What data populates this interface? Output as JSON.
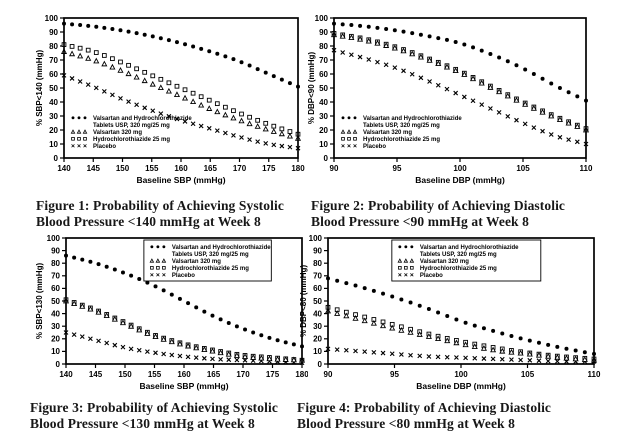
{
  "page": {
    "background": "#ffffff",
    "ink": "#000000",
    "caption_color": "#171717"
  },
  "chart_data": [
    {
      "type": "scatter",
      "title": "",
      "caption_line1": "Figure 1: Probability of Achieving Systolic",
      "caption_line2": "Blood Pressure <140 mmHg at Week 8",
      "xlabel": "Baseline SBP (mmHg)",
      "ylabel": "% SBP<140 (mmHg)",
      "xlim": [
        140,
        180
      ],
      "ylim": [
        0,
        100
      ],
      "xticks": [
        140,
        145,
        150,
        155,
        160,
        165,
        170,
        175,
        180
      ],
      "yticks": [
        0,
        10,
        20,
        30,
        40,
        50,
        60,
        70,
        80,
        90,
        100
      ],
      "grid": false,
      "legend_position": "bottom-left",
      "legend_boxed": false,
      "series": [
        {
          "name": "Valsartan and Hydrochlorothiazide Tablets USP, 320 mg/25 mg",
          "legend_lines": [
            "Valsartan and Hydrochlorothiazide",
            "Tablets USP, 320 mg/25 mg"
          ],
          "marker": "filled-circle",
          "x": [
            140,
            145,
            150,
            155,
            160,
            165,
            170,
            175,
            180
          ],
          "y": [
            96,
            94,
            91,
            87,
            82,
            76,
            69,
            60,
            51
          ]
        },
        {
          "name": "Valsartan 320 mg",
          "legend_lines": [
            "Valsartan 320 mg"
          ],
          "marker": "open-triangle",
          "x": [
            140,
            145,
            150,
            155,
            160,
            165,
            170,
            175,
            180
          ],
          "y": [
            76,
            70,
            62,
            53,
            44,
            35,
            27,
            20,
            14
          ]
        },
        {
          "name": "Hydrochlorothiazide 25 mg",
          "legend_lines": [
            "Hydrochlorothiazide 25 mg"
          ],
          "marker": "open-square",
          "x": [
            140,
            145,
            150,
            155,
            160,
            165,
            170,
            175,
            180
          ],
          "y": [
            81,
            76,
            68,
            59,
            50,
            41,
            32,
            24,
            17
          ]
        },
        {
          "name": "Placebo",
          "legend_lines": [
            "Placebo"
          ],
          "marker": "x",
          "x": [
            140,
            145,
            150,
            155,
            160,
            165,
            170,
            175,
            180
          ],
          "y": [
            59,
            51,
            42,
            34,
            27,
            21,
            15,
            10,
            7
          ]
        }
      ]
    },
    {
      "type": "scatter",
      "title": "",
      "caption_line1": "Figure 2: Probability of Achieving Diastolic",
      "caption_line2": "Blood Pressure <90 mmHg at Week 8",
      "xlabel": "Baseline DBP (mmHg)",
      "ylabel": "% DBP<90 (mmHg)",
      "xlim": [
        90,
        110
      ],
      "ylim": [
        0,
        100
      ],
      "xticks": [
        90,
        95,
        100,
        105,
        110
      ],
      "yticks": [
        0,
        10,
        20,
        30,
        40,
        50,
        60,
        70,
        80,
        90,
        100
      ],
      "grid": false,
      "legend_position": "bottom-left",
      "legend_boxed": false,
      "series": [
        {
          "name": "Valsartan and Hydrochlorothiazide Tablets USP, 320 mg/25 mg",
          "legend_lines": [
            "Valsartan and Hydrochlorothiazide",
            "Tablets USP, 320 mg/25 mg"
          ],
          "marker": "filled-circle",
          "x": [
            90,
            92.5,
            95,
            97.5,
            100,
            102.5,
            105,
            107.5,
            110
          ],
          "y": [
            96,
            94,
            91,
            87,
            82,
            74,
            64,
            52,
            41
          ]
        },
        {
          "name": "Valsartan 320 mg",
          "legend_lines": [
            "Valsartan 320 mg"
          ],
          "marker": "open-triangle",
          "x": [
            90,
            92.5,
            95,
            97.5,
            100,
            102.5,
            105,
            107.5,
            110
          ],
          "y": [
            88,
            84,
            78,
            70,
            61,
            50,
            39,
            29,
            20
          ]
        },
        {
          "name": "Hydrochlorothiazide 25 mg",
          "legend_lines": [
            "Hydrochlorothiazide 25 mg"
          ],
          "marker": "open-square",
          "x": [
            90,
            92.5,
            95,
            97.5,
            100,
            102.5,
            105,
            107.5,
            110
          ],
          "y": [
            89,
            85,
            79,
            71,
            62,
            51,
            40,
            30,
            21
          ]
        },
        {
          "name": "Placebo",
          "legend_lines": [
            "Placebo"
          ],
          "marker": "x",
          "x": [
            90,
            92.5,
            95,
            97.5,
            100,
            102.5,
            105,
            107.5,
            110
          ],
          "y": [
            77,
            71,
            64,
            55,
            45,
            35,
            25,
            16,
            10
          ]
        }
      ]
    },
    {
      "type": "scatter",
      "title": "",
      "caption_line1": "Figure 3: Probability of Achieving Systolic",
      "caption_line2": "Blood Pressure <130 mmHg at Week 8",
      "xlabel": "Baseline SBP (mmHg)",
      "ylabel": "% SBP<130 (mmHg)",
      "xlim": [
        140,
        180
      ],
      "ylim": [
        0,
        100
      ],
      "xticks": [
        140,
        145,
        150,
        155,
        160,
        165,
        170,
        175,
        180
      ],
      "yticks": [
        0,
        10,
        20,
        30,
        40,
        50,
        60,
        70,
        80,
        90,
        100
      ],
      "grid": false,
      "legend_position": "top-right",
      "legend_boxed": true,
      "series": [
        {
          "name": "Valsartan and Hydrochlorothiazide Tablets USP, 320 mg/25 mg",
          "legend_lines": [
            "Valsartan and Hydrochlorothiazide",
            "Tablets USP, 320 mg/25 mg"
          ],
          "marker": "filled-circle",
          "x": [
            140,
            145,
            150,
            155,
            160,
            165,
            170,
            175,
            180
          ],
          "y": [
            86,
            80,
            72,
            62,
            50,
            38,
            28,
            20,
            14
          ]
        },
        {
          "name": "Valsartan 320 mg",
          "legend_lines": [
            "Valsartan 320 mg"
          ],
          "marker": "open-triangle",
          "x": [
            140,
            145,
            150,
            155,
            160,
            165,
            170,
            175,
            180
          ],
          "y": [
            50,
            42,
            32,
            22,
            15,
            10,
            6,
            4,
            3
          ]
        },
        {
          "name": "Hydrochlorothiazide 25 mg",
          "legend_lines": [
            "Hydrochlorothiazide 25 mg"
          ],
          "marker": "open-square",
          "x": [
            140,
            145,
            150,
            155,
            160,
            165,
            170,
            175,
            180
          ],
          "y": [
            51,
            43,
            33,
            23,
            16,
            11,
            7,
            5,
            3
          ]
        },
        {
          "name": "Placebo",
          "legend_lines": [
            "Placebo"
          ],
          "marker": "x",
          "x": [
            140,
            145,
            150,
            155,
            160,
            165,
            170,
            175,
            180
          ],
          "y": [
            25,
            19,
            13,
            9,
            6,
            4,
            3,
            2,
            1
          ]
        }
      ]
    },
    {
      "type": "scatter",
      "title": "",
      "caption_line1": "Figure 4: Probability of Achieving Diastolic",
      "caption_line2": "Blood Pressure <80 mmHg at Week 8",
      "xlabel": "Baseline DBP (mmHg)",
      "ylabel": "% DBP<80 (mmHg)",
      "xlim": [
        90,
        110
      ],
      "ylim": [
        0,
        100
      ],
      "xticks": [
        90,
        95,
        100,
        105,
        110
      ],
      "yticks": [
        0,
        10,
        20,
        30,
        40,
        50,
        60,
        70,
        80,
        90,
        100
      ],
      "grid": false,
      "legend_position": "top-right",
      "legend_boxed": true,
      "series": [
        {
          "name": "Valsartan and Hydrochlorothiazide Tablets USP, 320 mg/25 mg",
          "legend_lines": [
            "Valsartan and Hydrochlorothiazide",
            "Tablets USP, 320 mg/25 mg"
          ],
          "marker": "filled-circle",
          "x": [
            90,
            92.5,
            95,
            97.5,
            100,
            102.5,
            105,
            107.5,
            110
          ],
          "y": [
            68,
            61,
            53,
            44,
            34,
            26,
            19,
            13,
            8
          ]
        },
        {
          "name": "Valsartan 320 mg",
          "legend_lines": [
            "Valsartan 320 mg"
          ],
          "marker": "open-triangle",
          "x": [
            90,
            92.5,
            95,
            97.5,
            100,
            102.5,
            105,
            107.5,
            110
          ],
          "y": [
            42,
            35,
            28,
            22,
            16,
            11,
            8,
            5,
            3
          ]
        },
        {
          "name": "Hydrochlorothiazide 25 mg",
          "legend_lines": [
            "Hydrochlorothiazide 25 mg"
          ],
          "marker": "open-square",
          "x": [
            90,
            92.5,
            95,
            97.5,
            100,
            102.5,
            105,
            107.5,
            110
          ],
          "y": [
            45,
            38,
            31,
            24,
            18,
            13,
            9,
            6,
            4
          ]
        },
        {
          "name": "Placebo",
          "legend_lines": [
            "Placebo"
          ],
          "marker": "x",
          "x": [
            90,
            92.5,
            95,
            97.5,
            100,
            102.5,
            105,
            107.5,
            110
          ],
          "y": [
            12,
            10,
            8,
            6,
            5,
            4,
            3,
            2,
            2
          ]
        }
      ]
    }
  ]
}
